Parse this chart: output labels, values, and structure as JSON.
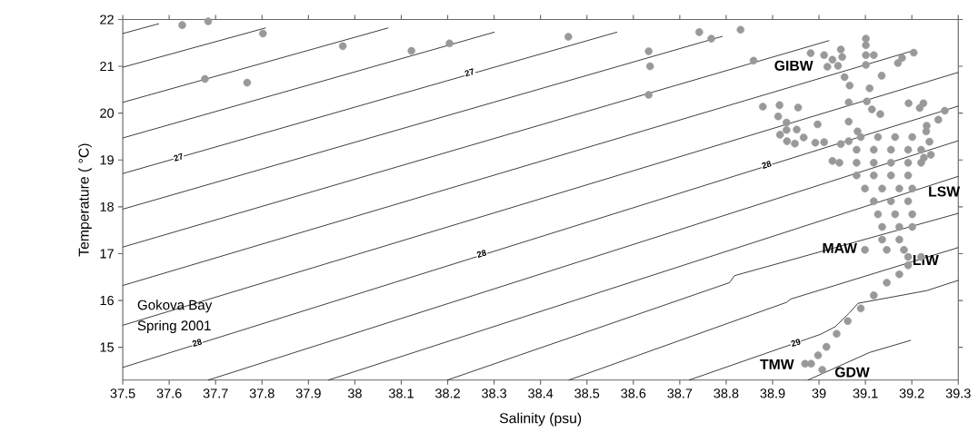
{
  "chart_data": {
    "type": "line",
    "xlabel": "Salinity (psu)",
    "ylabel": "Temperature ( °C)",
    "xlim": [
      37.5,
      39.3
    ],
    "ylim": [
      14.3,
      22
    ],
    "xticks": [
      37.5,
      37.6,
      37.7,
      37.8,
      37.9,
      38,
      38.1,
      38.2,
      38.3,
      38.4,
      38.5,
      38.6,
      38.7,
      38.8,
      38.9,
      39,
      39.1,
      39.2,
      39.3
    ],
    "yticks": [
      15,
      16,
      17,
      18,
      19,
      20,
      21,
      22
    ],
    "grid": false,
    "line_style": "solid",
    "annotations": [
      {
        "text": "27",
        "x": 37.62,
        "y": 19.06
      },
      {
        "text": "27",
        "x": 38.247,
        "y": 20.87
      },
      {
        "text": "28",
        "x": 37.66,
        "y": 15.1
      },
      {
        "text": "28",
        "x": 38.273,
        "y": 17.0
      },
      {
        "text": "28",
        "x": 38.887,
        "y": 18.9
      },
      {
        "text": "29",
        "x": 38.95,
        "y": 15.1
      },
      "GIBW",
      "LSW",
      "MAW",
      "LIW",
      "TMW",
      "GDW",
      "Gokova Bay",
      "Spring 2001"
    ],
    "series": [
      {
        "color": "#000000",
        "x": [
          37.5,
          37.578
        ],
        "values": [
          21.7,
          21.91
        ]
      },
      {
        "color": "#000000",
        "x": [
          37.5,
          37.808
        ],
        "values": [
          20.98,
          21.82
        ]
      },
      {
        "color": "#000000",
        "x": [
          37.5,
          38.072
        ],
        "values": [
          20.23,
          21.82
        ]
      },
      {
        "color": "#000000",
        "x": [
          37.5,
          38.301
        ],
        "values": [
          19.47,
          21.73
        ]
      },
      {
        "color": "#000000",
        "x": [
          37.5,
          38.565
        ],
        "values": [
          18.71,
          21.73
        ]
      },
      {
        "color": "#000000",
        "x": [
          37.5,
          38.792
        ],
        "values": [
          17.95,
          21.64
        ]
      },
      {
        "color": "#000000",
        "x": [
          37.5,
          39.022
        ],
        "values": [
          17.14,
          21.55
        ]
      },
      {
        "color": "#000000",
        "x": [
          37.5,
          39.198
        ],
        "values": [
          16.32,
          21.32
        ]
      },
      {
        "color": "#000000",
        "x": [
          37.5,
          39.3
        ],
        "values": [
          15.47,
          20.87
        ]
      },
      {
        "color": "#000000",
        "x": [
          37.5,
          39.3
        ],
        "values": [
          14.57,
          20.15
        ]
      },
      {
        "color": "#000000",
        "x": [
          37.684,
          39.3
        ],
        "values": [
          14.3,
          19.41
        ]
      },
      {
        "color": "#000000",
        "x": [
          37.943,
          39.3
        ],
        "values": [
          14.3,
          18.65
        ]
      },
      {
        "color": "#000000",
        "x": [
          38.199,
          38.807,
          38.818,
          39.3
        ],
        "values": [
          14.3,
          16.38,
          16.53,
          17.86
        ]
      },
      {
        "color": "#000000",
        "x": [
          38.461,
          38.93,
          38.939,
          39.3
        ],
        "values": [
          14.3,
          15.96,
          16.03,
          17.13
        ]
      },
      {
        "color": "#000000",
        "x": [
          38.72,
          39.004,
          39.035,
          39.066,
          39.084,
          39.232,
          39.3
        ],
        "values": [
          14.3,
          15.28,
          15.44,
          15.74,
          15.94,
          16.21,
          16.43
        ]
      },
      {
        "color": "#000000",
        "x": [
          38.976,
          39.109,
          39.198
        ],
        "values": [
          14.3,
          14.89,
          15.15
        ]
      },
      {
        "type": "scatter",
        "marker": "circle",
        "color": "#999999",
        "x": [
          37.628,
          37.684,
          37.802,
          37.677,
          37.768,
          37.974,
          38.122,
          38.204,
          38.46,
          38.742,
          38.768,
          38.831,
          38.633,
          38.636,
          38.633,
          38.859,
          38.982,
          39.011,
          39.047,
          39.05,
          39.029,
          39.018,
          39.041,
          39.101,
          39.101,
          39.101,
          39.118,
          39.101,
          39.135,
          39.179,
          39.17,
          39.204,
          39.055,
          39.066,
          39.109,
          39.103,
          39.064,
          39.114,
          39.132,
          39.193,
          39.225,
          39.217,
          39.271,
          39.257,
          39.232,
          39.231,
          39.238,
          39.241,
          39.226,
          38.879,
          38.915,
          38.955,
          38.912,
          38.93,
          38.93,
          38.916,
          38.952,
          38.967,
          38.931,
          38.948,
          38.997,
          38.992,
          39.011,
          39.064,
          39.047,
          39.029,
          39.083,
          39.064,
          39.09,
          39.127,
          39.164,
          39.201,
          39.081,
          39.118,
          39.155,
          39.192,
          39.22,
          39.044,
          39.081,
          39.118,
          39.155,
          39.192,
          39.22,
          39.081,
          39.118,
          39.155,
          39.192,
          39.099,
          39.136,
          39.173,
          39.201,
          39.118,
          39.155,
          39.192,
          39.127,
          39.164,
          39.201,
          39.136,
          39.173,
          39.201,
          39.136,
          39.173,
          39.099,
          39.146,
          39.183,
          39.192,
          39.22,
          39.192,
          39.173,
          39.146,
          39.118,
          39.09,
          39.062,
          39.038,
          39.016,
          38.998,
          38.983,
          38.97,
          39.007
        ],
        "values": [
          21.88,
          21.96,
          21.7,
          20.73,
          20.65,
          21.43,
          21.33,
          21.49,
          21.63,
          21.73,
          21.59,
          21.78,
          21.32,
          21.0,
          20.39,
          21.12,
          21.28,
          21.24,
          21.36,
          21.2,
          21.14,
          20.99,
          21.01,
          21.59,
          21.45,
          21.24,
          21.24,
          21.03,
          20.8,
          21.18,
          21.07,
          21.29,
          20.77,
          20.59,
          20.53,
          20.25,
          20.23,
          20.08,
          19.98,
          20.21,
          20.21,
          20.11,
          20.05,
          19.86,
          19.73,
          19.61,
          19.39,
          19.11,
          19.05,
          20.14,
          20.17,
          20.12,
          19.93,
          19.8,
          19.64,
          19.54,
          19.65,
          19.48,
          19.4,
          19.35,
          19.76,
          19.37,
          19.38,
          19.82,
          19.34,
          18.98,
          19.61,
          19.4,
          19.49,
          19.49,
          19.49,
          19.49,
          19.22,
          19.22,
          19.22,
          19.22,
          19.22,
          18.94,
          18.94,
          18.94,
          18.94,
          18.94,
          18.94,
          18.67,
          18.67,
          18.67,
          18.67,
          18.39,
          18.39,
          18.39,
          18.39,
          18.12,
          18.12,
          18.12,
          17.84,
          17.84,
          17.84,
          17.57,
          17.57,
          17.57,
          17.3,
          17.3,
          17.08,
          17.08,
          17.08,
          16.93,
          16.93,
          16.75,
          16.56,
          16.38,
          16.11,
          15.83,
          15.56,
          15.29,
          15.01,
          14.83,
          14.65,
          14.65,
          14.52
        ]
      }
    ]
  }
}
